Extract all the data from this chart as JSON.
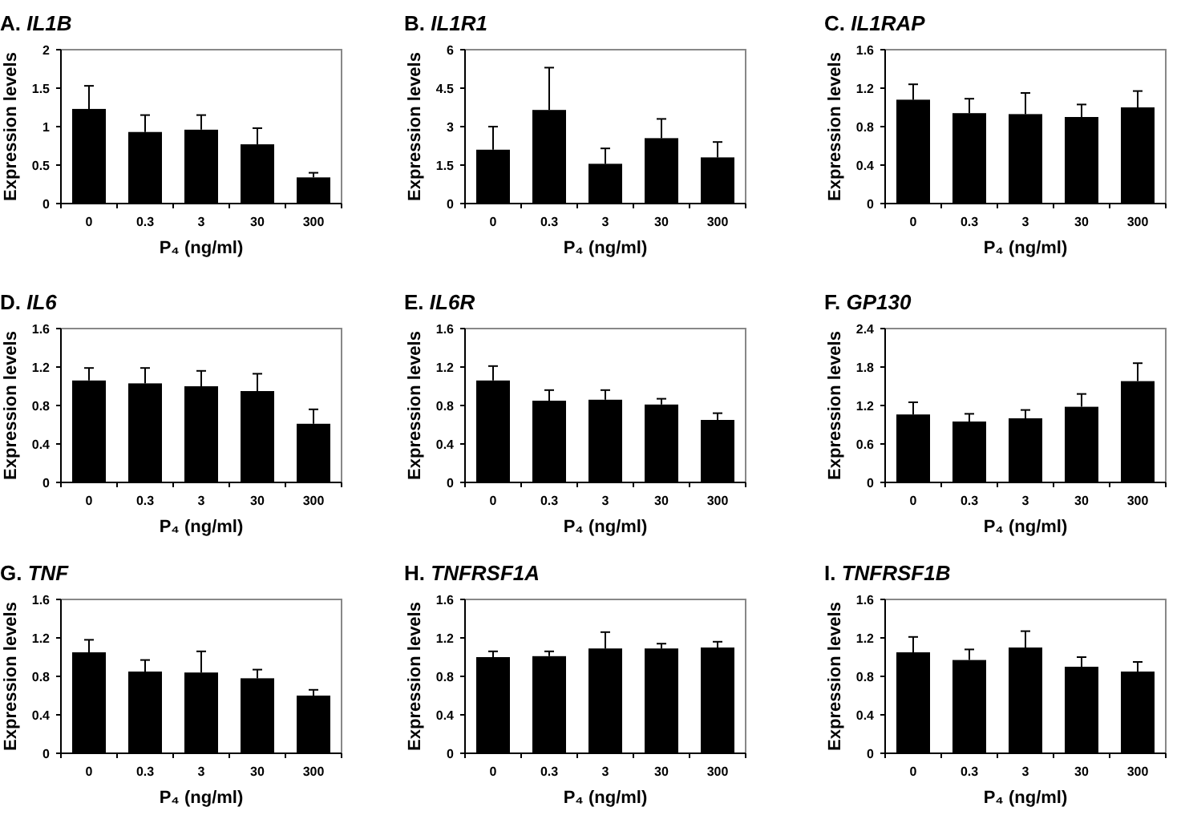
{
  "chart_data": [
    {
      "type": "bar",
      "title": "A. IL1B",
      "xlabel": "P₄ (ng/ml)",
      "ylabel": "Expression levels",
      "categories": [
        "0",
        "0.3",
        "3",
        "30",
        "300"
      ],
      "color": "#000000",
      "values": [
        1.23,
        0.93,
        0.96,
        0.77,
        0.34
      ],
      "errors": [
        0.3,
        0.22,
        0.19,
        0.21,
        0.06
      ],
      "ylim": [
        0,
        2
      ],
      "yticks": [
        0,
        0.5,
        1,
        1.5,
        2
      ]
    },
    {
      "type": "bar",
      "title": "B. IL1R1",
      "xlabel": "P₄ (ng/ml)",
      "ylabel": "Expression levels",
      "categories": [
        "0",
        "0.3",
        "3",
        "30",
        "300"
      ],
      "color": "#000000",
      "values": [
        2.1,
        3.65,
        1.55,
        2.55,
        1.8
      ],
      "errors": [
        0.9,
        1.65,
        0.6,
        0.75,
        0.6
      ],
      "ylim": [
        0,
        6
      ],
      "yticks": [
        0,
        1.5,
        3,
        4.5,
        6
      ]
    },
    {
      "type": "bar",
      "title": "C. IL1RAP",
      "xlabel": "P₄ (ng/ml)",
      "ylabel": "Expression levels",
      "categories": [
        "0",
        "0.3",
        "3",
        "30",
        "300"
      ],
      "color": "#000000",
      "values": [
        1.08,
        0.94,
        0.93,
        0.9,
        1.0
      ],
      "errors": [
        0.16,
        0.15,
        0.22,
        0.13,
        0.17
      ],
      "ylim": [
        0,
        1.6
      ],
      "yticks": [
        0,
        0.4,
        0.8,
        1.2,
        1.6
      ]
    },
    {
      "type": "bar",
      "title": "D. IL6",
      "xlabel": "P₄ (ng/ml)",
      "ylabel": "Expression levels",
      "categories": [
        "0",
        "0.3",
        "3",
        "30",
        "300"
      ],
      "color": "#000000",
      "values": [
        1.06,
        1.03,
        1.0,
        0.95,
        0.61
      ],
      "errors": [
        0.13,
        0.16,
        0.16,
        0.18,
        0.15
      ],
      "ylim": [
        0,
        1.6
      ],
      "yticks": [
        0,
        0.4,
        0.8,
        1.2,
        1.6
      ]
    },
    {
      "type": "bar",
      "title": "E. IL6R",
      "xlabel": "P₄ (ng/ml)",
      "ylabel": "Expression levels",
      "categories": [
        "0",
        "0.3",
        "3",
        "30",
        "300"
      ],
      "color": "#000000",
      "values": [
        1.06,
        0.85,
        0.86,
        0.81,
        0.65
      ],
      "errors": [
        0.15,
        0.11,
        0.1,
        0.06,
        0.07
      ],
      "ylim": [
        0,
        1.6
      ],
      "yticks": [
        0,
        0.4,
        0.8,
        1.2,
        1.6
      ]
    },
    {
      "type": "bar",
      "title": "F. GP130",
      "xlabel": "P₄ (ng/ml)",
      "ylabel": "Expression levels",
      "categories": [
        "0",
        "0.3",
        "3",
        "30",
        "300"
      ],
      "color": "#000000",
      "values": [
        1.06,
        0.95,
        1.0,
        1.18,
        1.58
      ],
      "errors": [
        0.19,
        0.12,
        0.13,
        0.2,
        0.28
      ],
      "ylim": [
        0,
        2.4
      ],
      "yticks": [
        0,
        0.6,
        1.2,
        1.8,
        2.4
      ]
    },
    {
      "type": "bar",
      "title": "G. TNF",
      "xlabel": "P₄ (ng/ml)",
      "ylabel": "Expression levels",
      "categories": [
        "0",
        "0.3",
        "3",
        "30",
        "300"
      ],
      "color": "#000000",
      "values": [
        1.05,
        0.85,
        0.84,
        0.78,
        0.6
      ],
      "errors": [
        0.13,
        0.12,
        0.22,
        0.09,
        0.06
      ],
      "ylim": [
        0,
        1.6
      ],
      "yticks": [
        0,
        0.4,
        0.8,
        1.2,
        1.6
      ]
    },
    {
      "type": "bar",
      "title": "H. TNFRSF1A",
      "xlabel": "P₄ (ng/ml)",
      "ylabel": "Expression levels",
      "categories": [
        "0",
        "0.3",
        "3",
        "30",
        "300"
      ],
      "color": "#000000",
      "values": [
        1.0,
        1.01,
        1.09,
        1.09,
        1.1
      ],
      "errors": [
        0.06,
        0.05,
        0.17,
        0.05,
        0.06
      ],
      "ylim": [
        0,
        1.6
      ],
      "yticks": [
        0,
        0.4,
        0.8,
        1.2,
        1.6
      ]
    },
    {
      "type": "bar",
      "title": "I. TNFRSF1B",
      "xlabel": "P₄ (ng/ml)",
      "ylabel": "Expression levels",
      "categories": [
        "0",
        "0.3",
        "3",
        "30",
        "300"
      ],
      "color": "#000000",
      "values": [
        1.05,
        0.97,
        1.1,
        0.9,
        0.85
      ],
      "errors": [
        0.16,
        0.11,
        0.17,
        0.1,
        0.1
      ],
      "ylim": [
        0,
        1.6
      ],
      "yticks": [
        0,
        0.4,
        0.8,
        1.2,
        1.6
      ]
    }
  ]
}
